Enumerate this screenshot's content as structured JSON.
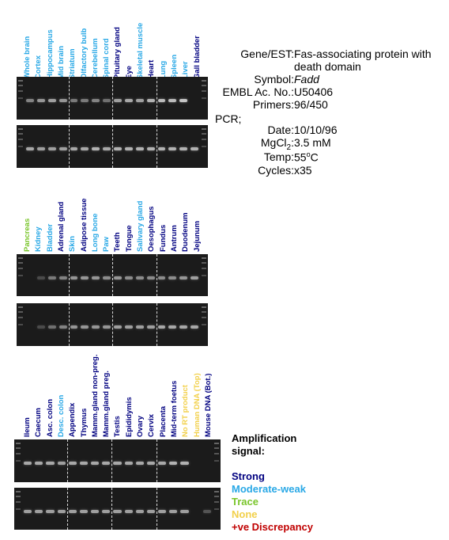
{
  "panels": [
    {
      "lanes": [
        {
          "label": "Whole brain",
          "signal": "moderate"
        },
        {
          "label": "Cortex",
          "signal": "moderate"
        },
        {
          "label": "Hippocampus",
          "signal": "moderate"
        },
        {
          "label": "Mid brain",
          "signal": "moderate"
        },
        {
          "label": "Striatum",
          "signal": "moderate"
        },
        {
          "label": "Olfactory bulb",
          "signal": "moderate"
        },
        {
          "label": "Cerebellum",
          "signal": "moderate"
        },
        {
          "label": "Spinal cord",
          "signal": "moderate"
        },
        {
          "label": "Pituitary gland",
          "signal": "strong"
        },
        {
          "label": "Eye",
          "signal": "strong"
        },
        {
          "label": "Skeletal muscle",
          "signal": "moderate"
        },
        {
          "label": "Heart",
          "signal": "strong"
        },
        {
          "label": "Lung",
          "signal": "moderate"
        },
        {
          "label": "Spleen",
          "signal": "moderate"
        },
        {
          "label": "Liver",
          "signal": "moderate"
        },
        {
          "label": "Gall bladder",
          "signal": "strong"
        }
      ]
    },
    {
      "lanes": [
        {
          "label": "Pancreas",
          "signal": "trace"
        },
        {
          "label": "Kidney",
          "signal": "moderate"
        },
        {
          "label": "Bladder",
          "signal": "moderate"
        },
        {
          "label": "Adrenal gland",
          "signal": "strong"
        },
        {
          "label": "Skin",
          "signal": "moderate"
        },
        {
          "label": "Adipose tissue",
          "signal": "strong"
        },
        {
          "label": "Long bone",
          "signal": "moderate"
        },
        {
          "label": "Paw",
          "signal": "moderate"
        },
        {
          "label": "Teeth",
          "signal": "strong"
        },
        {
          "label": "Tongue",
          "signal": "strong"
        },
        {
          "label": "Salivary gland",
          "signal": "moderate"
        },
        {
          "label": "Oesophagus",
          "signal": "strong"
        },
        {
          "label": "Fundus",
          "signal": "strong"
        },
        {
          "label": "Antrum",
          "signal": "strong"
        },
        {
          "label": "Duodenum",
          "signal": "strong"
        },
        {
          "label": "Jejunum",
          "signal": "strong"
        }
      ]
    },
    {
      "lanes": [
        {
          "label": "Ileum",
          "signal": "strong"
        },
        {
          "label": "Caecum",
          "signal": "strong"
        },
        {
          "label": "Asc. colon",
          "signal": "strong"
        },
        {
          "label": "Desc. colon",
          "signal": "moderate"
        },
        {
          "label": "Appendix",
          "signal": "strong"
        },
        {
          "label": "Thymus",
          "signal": "strong"
        },
        {
          "label": "Mamm.gland non-preg.",
          "signal": "strong"
        },
        {
          "label": "Mamm.gland preg.",
          "signal": "strong"
        },
        {
          "label": "Testis",
          "signal": "strong"
        },
        {
          "label": "Epididymis",
          "signal": "strong"
        },
        {
          "label": "Ovary",
          "signal": "strong"
        },
        {
          "label": "Cervix",
          "signal": "strong"
        },
        {
          "label": "Placenta",
          "signal": "strong"
        },
        {
          "label": "Mid-term foetus",
          "signal": "strong"
        },
        {
          "label": "No RT product",
          "signal": "none"
        },
        {
          "label": "Human DNA (Top)",
          "signal": "none"
        },
        {
          "label": "Mouse DNA (Bot.)",
          "signal": "strong"
        }
      ]
    }
  ],
  "gels": [
    {
      "bands": [
        0.55,
        0.65,
        0.7,
        0.65,
        0.5,
        0.5,
        0.55,
        0.45,
        0.7,
        0.75,
        0.7,
        0.8,
        0.85,
        0.85,
        0.9,
        0
      ]
    },
    {
      "bands": [
        0.75,
        0.7,
        0.7,
        0.7,
        0.75,
        0.75,
        0.8,
        0.75,
        0.8,
        0.8,
        0.8,
        0.8,
        0.8,
        0.8,
        0.8,
        0.8
      ]
    },
    {
      "bands": [
        0,
        0.25,
        0.5,
        0.55,
        0.65,
        0.65,
        0.65,
        0.6,
        0.65,
        0.6,
        0.6,
        0.6,
        0.6,
        0.6,
        0.65,
        0.7
      ]
    },
    {
      "bands": [
        0,
        0.25,
        0.45,
        0.55,
        0.65,
        0.65,
        0.65,
        0.65,
        0.7,
        0.7,
        0.7,
        0.7,
        0.75,
        0.75,
        0.75,
        0.75
      ]
    },
    {
      "bands": [
        0.75,
        0.75,
        0.75,
        0.7,
        0.75,
        0.75,
        0.75,
        0.75,
        0.75,
        0.75,
        0.75,
        0.75,
        0.75,
        0.8,
        0.8,
        0,
        0
      ]
    },
    {
      "bands": [
        0.7,
        0.7,
        0.7,
        0.7,
        0.7,
        0.7,
        0.7,
        0.7,
        0.7,
        0.7,
        0.7,
        0.7,
        0.7,
        0.7,
        0.7,
        0,
        0.3
      ]
    }
  ],
  "info": {
    "gene_key": "Gene/EST:",
    "gene_value_1": "Fas-associating protein with",
    "gene_value_2": "death domain",
    "symbol_key": "Symbol:",
    "symbol_value": "Fadd",
    "embl_key": "EMBL Ac. No.:",
    "embl_value": "U50406",
    "primers_key": "Primers:",
    "primers_value": "96/450",
    "pcr_key": "PCR;",
    "date_key": "Date:",
    "date_value": "10/10/96",
    "mgcl_key": "MgCl",
    "mgcl_sub": "2",
    "mgcl_colon": ":",
    "mgcl_value": "3.5 mM",
    "temp_key": "Temp:",
    "temp_value": "55",
    "temp_sup": "o",
    "temp_unit": "C",
    "cycles_key": "Cycles:",
    "cycles_value": "x35"
  },
  "legend": {
    "title_1": "Amplification",
    "title_2": "signal:",
    "strong": "Strong",
    "moderate": "Moderate-weak",
    "trace": "Trace",
    "none": "None",
    "discrepancy": "+ve Discrepancy"
  },
  "colors": {
    "strong": "#000080",
    "moderate": "#29a8e6",
    "trace": "#79c52a",
    "none": "#f2d04a",
    "discrepancy": "#c00000"
  }
}
